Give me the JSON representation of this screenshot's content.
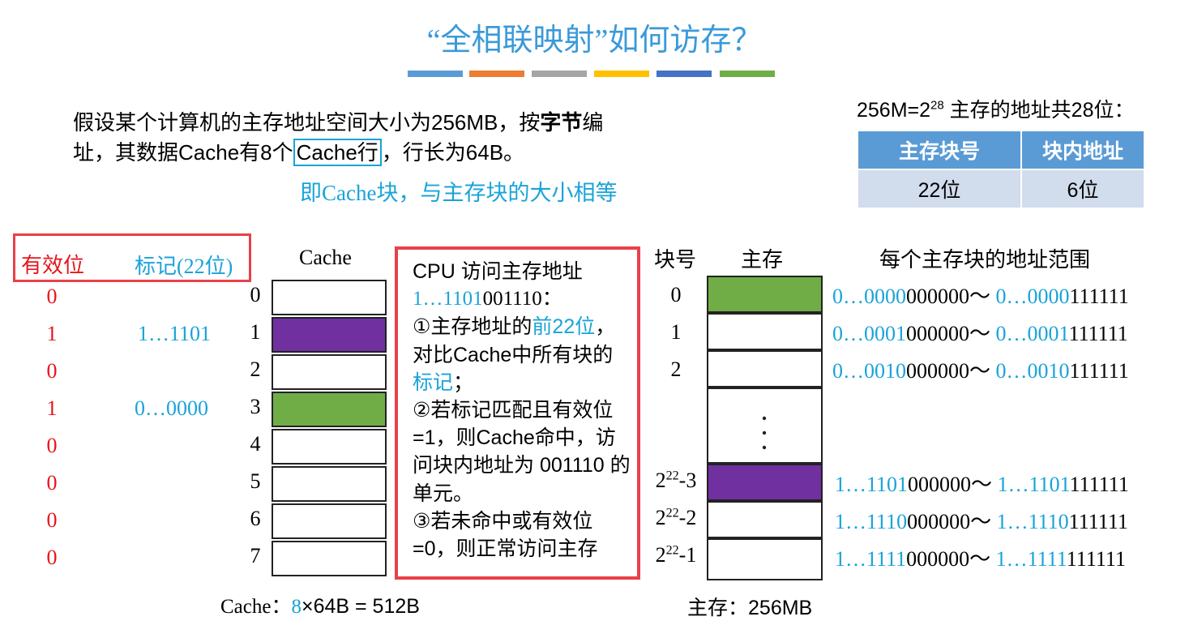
{
  "title": "“全相联映射”如何访存？",
  "color_bars": [
    "#5b9bd5",
    "#ed7d31",
    "#a5a5a5",
    "#ffc000",
    "#4472c4",
    "#70ad47"
  ],
  "intro": {
    "line1_a": "假设某个计算机的主存地址空间大小为256MB，按",
    "line1_bold": "字节",
    "line1_b": "编",
    "line2_a": "址，其数据Cache有8个",
    "line2_box": "Cache行",
    "line2_b": "，行长为64B。",
    "note": "即Cache块，与主存块的大小相等"
  },
  "address": {
    "formula_base": "256M=2",
    "formula_exp": "28",
    "formula_text": " 主存的地址共28位：",
    "headers": [
      "主存块号",
      "块内地址"
    ],
    "values": [
      "22位",
      "6位"
    ]
  },
  "legend": {
    "valid": "有效位",
    "tag": "标记(22位)"
  },
  "cache": {
    "title": "Cache",
    "lines": [
      {
        "index": "0",
        "valid": "0",
        "tag": "",
        "fill": "#ffffff"
      },
      {
        "index": "1",
        "valid": "1",
        "tag": "1…1101",
        "fill": "#7030a0"
      },
      {
        "index": "2",
        "valid": "0",
        "tag": "",
        "fill": "#ffffff"
      },
      {
        "index": "3",
        "valid": "1",
        "tag": "0…0000",
        "fill": "#70ad47"
      },
      {
        "index": "4",
        "valid": "0",
        "tag": "",
        "fill": "#ffffff"
      },
      {
        "index": "5",
        "valid": "0",
        "tag": "",
        "fill": "#ffffff"
      },
      {
        "index": "6",
        "valid": "0",
        "tag": "",
        "fill": "#ffffff"
      },
      {
        "index": "7",
        "valid": "0",
        "tag": "",
        "fill": "#ffffff"
      }
    ],
    "size_label": "Cache：",
    "size_num": "8",
    "size_rest": "×64B = 512B"
  },
  "cpu": {
    "line1": "CPU 访问主存地址",
    "addr_blue": "1…1101",
    "addr_black": "001110：",
    "step1_a": "①主存地址的",
    "step1_blue": "前22位",
    "step1_b": "，对比Cache中所有块的",
    "step1_tag": "标记",
    "step1_c": "；",
    "step2": "②若标记匹配且有效位=1，则Cache命中，访问块内地址为 001110 的单元。",
    "step3": "③若未命中或有效位=0，则正常访问主存"
  },
  "memory": {
    "col_block": "块号",
    "col_mem": "主存",
    "col_range": "每个主存块的地址范围",
    "rows": [
      {
        "idx": "0",
        "sup": "",
        "suffix": "",
        "fill": "#70ad47",
        "r1b": "0…0000",
        "r1k": "000000～ ",
        "r2b": "0…0000",
        "r2k": "111111"
      },
      {
        "idx": "1",
        "sup": "",
        "suffix": "",
        "fill": "#ffffff",
        "r1b": "0…0001",
        "r1k": "000000～ ",
        "r2b": "0…0001",
        "r2k": "111111"
      },
      {
        "idx": "2",
        "sup": "",
        "suffix": "",
        "fill": "#ffffff",
        "r1b": "0…0010",
        "r1k": "000000～ ",
        "r2b": "0…0010",
        "r2k": "111111"
      },
      {
        "idx": "2",
        "sup": "22",
        "suffix": "-3",
        "fill": "#7030a0",
        "r1b": "1…1101",
        "r1k": "000000～ ",
        "r2b": "1…1101",
        "r2k": "111111"
      },
      {
        "idx": "2",
        "sup": "22",
        "suffix": "-2",
        "fill": "#ffffff",
        "r1b": "1…1110",
        "r1k": "000000～ ",
        "r2b": "1…1110",
        "r2k": "111111"
      },
      {
        "idx": "2",
        "sup": "22",
        "suffix": "-1",
        "fill": "#ffffff",
        "r1b": "1…1111",
        "r1k": "000000～ ",
        "r2b": "1…1111",
        "r2k": "111111"
      }
    ],
    "size_label": "主存：",
    "size_value": "256MB"
  }
}
